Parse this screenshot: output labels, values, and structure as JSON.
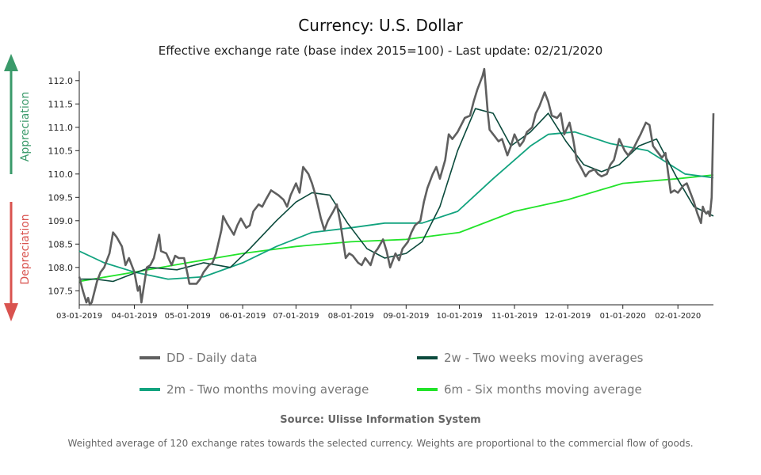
{
  "title": "Currency: U.S. Dollar",
  "subtitle": "Effective exchange rate (base index 2015=100) - Last update: 02/21/2020",
  "appreciation_label": "Appreciation",
  "depreciation_label": "Depreciation",
  "source": "Source: Ulisse Information System",
  "footnote": "Weighted average of 120 exchange rates towards the selected currency. Weights are proportional to the commercial flow of goods.",
  "colors": {
    "appreciation": "#3a9a6a",
    "depreciation": "#d9534f",
    "dd": "#5f5f5f",
    "w2": "#0b4a3c",
    "m2": "#12a37f",
    "m6": "#22e32a"
  },
  "chart_data": {
    "type": "line",
    "xlabel": "",
    "ylabel": "",
    "x_ticks": [
      "03-01-2019",
      "04-01-2019",
      "05-01-2019",
      "06-01-2019",
      "07-01-2019",
      "08-01-2019",
      "09-01-2019",
      "10-01-2019",
      "11-01-2019",
      "12-01-2019",
      "01-01-2020",
      "02-01-2020"
    ],
    "y_ticks": [
      "107.5",
      "108.0",
      "108.5",
      "109.0",
      "109.5",
      "110.0",
      "110.5",
      "111.0",
      "111.5",
      "112.0"
    ],
    "ylim": [
      107.2,
      112.2
    ],
    "xlim": [
      "2019-03-01",
      "2020-02-21"
    ],
    "grid": false,
    "legend_position": "bottom",
    "series": [
      {
        "name": "DD - Daily data",
        "color_key": "dd",
        "points": [
          [
            "2019-03-01",
            107.8
          ],
          [
            "2019-03-03",
            107.5
          ],
          [
            "2019-03-05",
            107.25
          ],
          [
            "2019-03-06",
            107.35
          ],
          [
            "2019-03-07",
            107.2
          ],
          [
            "2019-03-08",
            107.25
          ],
          [
            "2019-03-11",
            107.7
          ],
          [
            "2019-03-13",
            107.9
          ],
          [
            "2019-03-15",
            108.0
          ],
          [
            "2019-03-18",
            108.3
          ],
          [
            "2019-03-20",
            108.75
          ],
          [
            "2019-03-22",
            108.65
          ],
          [
            "2019-03-25",
            108.45
          ],
          [
            "2019-03-27",
            108.05
          ],
          [
            "2019-03-29",
            108.2
          ],
          [
            "2019-04-01",
            107.9
          ],
          [
            "2019-04-03",
            107.5
          ],
          [
            "2019-04-04",
            107.6
          ],
          [
            "2019-04-05",
            107.25
          ],
          [
            "2019-04-08",
            108.0
          ],
          [
            "2019-04-10",
            108.05
          ],
          [
            "2019-04-12",
            108.2
          ],
          [
            "2019-04-15",
            108.7
          ],
          [
            "2019-04-16",
            108.35
          ],
          [
            "2019-04-19",
            108.3
          ],
          [
            "2019-04-22",
            108.05
          ],
          [
            "2019-04-24",
            108.25
          ],
          [
            "2019-04-26",
            108.2
          ],
          [
            "2019-04-29",
            108.2
          ],
          [
            "2019-05-01",
            107.85
          ],
          [
            "2019-05-02",
            107.65
          ],
          [
            "2019-05-06",
            107.65
          ],
          [
            "2019-05-08",
            107.75
          ],
          [
            "2019-05-10",
            107.9
          ],
          [
            "2019-05-13",
            108.05
          ],
          [
            "2019-05-15",
            108.1
          ],
          [
            "2019-05-17",
            108.3
          ],
          [
            "2019-05-20",
            108.8
          ],
          [
            "2019-05-21",
            109.1
          ],
          [
            "2019-05-23",
            108.95
          ],
          [
            "2019-05-27",
            108.7
          ],
          [
            "2019-05-29",
            108.9
          ],
          [
            "2019-05-31",
            109.05
          ],
          [
            "2019-06-03",
            108.85
          ],
          [
            "2019-06-05",
            108.9
          ],
          [
            "2019-06-07",
            109.2
          ],
          [
            "2019-06-10",
            109.35
          ],
          [
            "2019-06-12",
            109.3
          ],
          [
            "2019-06-14",
            109.45
          ],
          [
            "2019-06-17",
            109.65
          ],
          [
            "2019-06-19",
            109.6
          ],
          [
            "2019-06-21",
            109.55
          ],
          [
            "2019-06-24",
            109.45
          ],
          [
            "2019-06-26",
            109.3
          ],
          [
            "2019-06-28",
            109.55
          ],
          [
            "2019-07-01",
            109.8
          ],
          [
            "2019-07-03",
            109.6
          ],
          [
            "2019-07-05",
            110.15
          ],
          [
            "2019-07-08",
            110.0
          ],
          [
            "2019-07-10",
            109.8
          ],
          [
            "2019-07-12",
            109.55
          ],
          [
            "2019-07-15",
            109.05
          ],
          [
            "2019-07-17",
            108.8
          ],
          [
            "2019-07-19",
            109.0
          ],
          [
            "2019-07-22",
            109.2
          ],
          [
            "2019-07-24",
            109.35
          ],
          [
            "2019-07-26",
            108.95
          ],
          [
            "2019-07-29",
            108.2
          ],
          [
            "2019-07-31",
            108.3
          ],
          [
            "2019-08-02",
            108.25
          ],
          [
            "2019-08-05",
            108.1
          ],
          [
            "2019-08-07",
            108.05
          ],
          [
            "2019-08-09",
            108.2
          ],
          [
            "2019-08-12",
            108.05
          ],
          [
            "2019-08-14",
            108.3
          ],
          [
            "2019-08-16",
            108.4
          ],
          [
            "2019-08-19",
            108.6
          ],
          [
            "2019-08-21",
            108.35
          ],
          [
            "2019-08-23",
            108.0
          ],
          [
            "2019-08-26",
            108.3
          ],
          [
            "2019-08-28",
            108.15
          ],
          [
            "2019-08-30",
            108.4
          ],
          [
            "2019-09-02",
            108.55
          ],
          [
            "2019-09-04",
            108.75
          ],
          [
            "2019-09-06",
            108.9
          ],
          [
            "2019-09-09",
            109.0
          ],
          [
            "2019-09-11",
            109.4
          ],
          [
            "2019-09-13",
            109.7
          ],
          [
            "2019-09-16",
            110.0
          ],
          [
            "2019-09-18",
            110.15
          ],
          [
            "2019-09-20",
            109.9
          ],
          [
            "2019-09-23",
            110.3
          ],
          [
            "2019-09-25",
            110.85
          ],
          [
            "2019-09-27",
            110.75
          ],
          [
            "2019-09-30",
            110.9
          ],
          [
            "2019-10-02",
            111.05
          ],
          [
            "2019-10-04",
            111.2
          ],
          [
            "2019-10-07",
            111.25
          ],
          [
            "2019-10-09",
            111.55
          ],
          [
            "2019-10-11",
            111.8
          ],
          [
            "2019-10-14",
            112.1
          ],
          [
            "2019-10-15",
            112.25
          ],
          [
            "2019-10-17",
            111.3
          ],
          [
            "2019-10-18",
            110.95
          ],
          [
            "2019-10-21",
            110.8
          ],
          [
            "2019-10-23",
            110.7
          ],
          [
            "2019-10-25",
            110.75
          ],
          [
            "2019-10-28",
            110.4
          ],
          [
            "2019-10-30",
            110.6
          ],
          [
            "2019-11-01",
            110.85
          ],
          [
            "2019-11-04",
            110.6
          ],
          [
            "2019-11-06",
            110.7
          ],
          [
            "2019-11-08",
            110.9
          ],
          [
            "2019-11-11",
            111.0
          ],
          [
            "2019-11-13",
            111.3
          ],
          [
            "2019-11-15",
            111.45
          ],
          [
            "2019-11-18",
            111.75
          ],
          [
            "2019-11-20",
            111.55
          ],
          [
            "2019-11-22",
            111.25
          ],
          [
            "2019-11-25",
            111.2
          ],
          [
            "2019-11-27",
            111.3
          ],
          [
            "2019-11-29",
            110.85
          ],
          [
            "2019-12-02",
            111.1
          ],
          [
            "2019-12-04",
            110.75
          ],
          [
            "2019-12-06",
            110.3
          ],
          [
            "2019-12-09",
            110.1
          ],
          [
            "2019-12-11",
            109.95
          ],
          [
            "2019-12-13",
            110.05
          ],
          [
            "2019-12-16",
            110.1
          ],
          [
            "2019-12-18",
            110.0
          ],
          [
            "2019-12-20",
            109.95
          ],
          [
            "2019-12-23",
            110.0
          ],
          [
            "2019-12-25",
            110.2
          ],
          [
            "2019-12-27",
            110.3
          ],
          [
            "2019-12-30",
            110.75
          ],
          [
            "2020-01-02",
            110.5
          ],
          [
            "2020-01-04",
            110.4
          ],
          [
            "2020-01-07",
            110.55
          ],
          [
            "2020-01-09",
            110.7
          ],
          [
            "2020-01-11",
            110.85
          ],
          [
            "2020-01-14",
            111.1
          ],
          [
            "2020-01-16",
            111.05
          ],
          [
            "2020-01-18",
            110.6
          ],
          [
            "2020-01-21",
            110.45
          ],
          [
            "2020-01-23",
            110.35
          ],
          [
            "2020-01-25",
            110.45
          ],
          [
            "2020-01-28",
            109.6
          ],
          [
            "2020-01-30",
            109.65
          ],
          [
            "2020-02-01",
            109.6
          ],
          [
            "2020-02-04",
            109.75
          ],
          [
            "2020-02-06",
            109.8
          ],
          [
            "2020-02-08",
            109.6
          ],
          [
            "2020-02-10",
            109.4
          ],
          [
            "2020-02-12",
            109.15
          ],
          [
            "2020-02-13",
            109.05
          ],
          [
            "2020-02-14",
            108.95
          ],
          [
            "2020-02-15",
            109.3
          ],
          [
            "2020-02-16",
            109.2
          ],
          [
            "2020-02-17",
            109.15
          ],
          [
            "2020-02-18",
            109.2
          ],
          [
            "2020-02-19",
            109.1
          ],
          [
            "2020-02-20",
            109.5
          ],
          [
            "2020-02-21",
            111.3
          ]
        ]
      },
      {
        "name": "2w - Two weeks moving averages",
        "color_key": "w2",
        "points": [
          [
            "2019-03-01",
            107.75
          ],
          [
            "2019-03-10",
            107.75
          ],
          [
            "2019-03-20",
            107.7
          ],
          [
            "2019-03-30",
            107.85
          ],
          [
            "2019-04-10",
            108.0
          ],
          [
            "2019-04-25",
            107.95
          ],
          [
            "2019-05-10",
            108.1
          ],
          [
            "2019-05-25",
            108.0
          ],
          [
            "2019-06-05",
            108.4
          ],
          [
            "2019-06-20",
            109.0
          ],
          [
            "2019-07-01",
            109.4
          ],
          [
            "2019-07-10",
            109.6
          ],
          [
            "2019-07-20",
            109.55
          ],
          [
            "2019-07-30",
            108.95
          ],
          [
            "2019-08-10",
            108.4
          ],
          [
            "2019-08-20",
            108.2
          ],
          [
            "2019-09-01",
            108.3
          ],
          [
            "2019-09-10",
            108.55
          ],
          [
            "2019-09-20",
            109.3
          ],
          [
            "2019-09-30",
            110.5
          ],
          [
            "2019-10-10",
            111.4
          ],
          [
            "2019-10-20",
            111.3
          ],
          [
            "2019-10-30",
            110.6
          ],
          [
            "2019-11-10",
            110.9
          ],
          [
            "2019-11-20",
            111.3
          ],
          [
            "2019-11-30",
            110.7
          ],
          [
            "2019-12-10",
            110.2
          ],
          [
            "2019-12-20",
            110.05
          ],
          [
            "2019-12-30",
            110.2
          ],
          [
            "2020-01-10",
            110.6
          ],
          [
            "2020-01-20",
            110.75
          ],
          [
            "2020-01-31",
            109.95
          ],
          [
            "2020-02-10",
            109.3
          ],
          [
            "2020-02-21",
            109.1
          ]
        ]
      },
      {
        "name": "2m - Two months moving average",
        "color_key": "m2",
        "points": [
          [
            "2019-03-01",
            108.35
          ],
          [
            "2019-03-15",
            108.1
          ],
          [
            "2019-04-01",
            107.9
          ],
          [
            "2019-04-20",
            107.75
          ],
          [
            "2019-05-10",
            107.8
          ],
          [
            "2019-06-01",
            108.1
          ],
          [
            "2019-06-20",
            108.45
          ],
          [
            "2019-07-10",
            108.75
          ],
          [
            "2019-08-01",
            108.85
          ],
          [
            "2019-08-20",
            108.95
          ],
          [
            "2019-09-10",
            108.95
          ],
          [
            "2019-09-30",
            109.2
          ],
          [
            "2019-10-20",
            109.9
          ],
          [
            "2019-11-10",
            110.6
          ],
          [
            "2019-11-20",
            110.85
          ],
          [
            "2019-12-05",
            110.9
          ],
          [
            "2019-12-25",
            110.65
          ],
          [
            "2020-01-15",
            110.5
          ],
          [
            "2020-02-05",
            110.0
          ],
          [
            "2020-02-21",
            109.92
          ]
        ]
      },
      {
        "name": "6m - Six months moving average",
        "color_key": "m6",
        "points": [
          [
            "2019-03-01",
            107.7
          ],
          [
            "2019-04-01",
            107.9
          ],
          [
            "2019-05-01",
            108.1
          ],
          [
            "2019-06-01",
            108.3
          ],
          [
            "2019-07-01",
            108.45
          ],
          [
            "2019-08-01",
            108.55
          ],
          [
            "2019-09-01",
            108.6
          ],
          [
            "2019-10-01",
            108.75
          ],
          [
            "2019-11-01",
            109.2
          ],
          [
            "2019-12-01",
            109.45
          ],
          [
            "2020-01-01",
            109.8
          ],
          [
            "2020-02-01",
            109.9
          ],
          [
            "2020-02-21",
            109.98
          ]
        ]
      }
    ]
  }
}
